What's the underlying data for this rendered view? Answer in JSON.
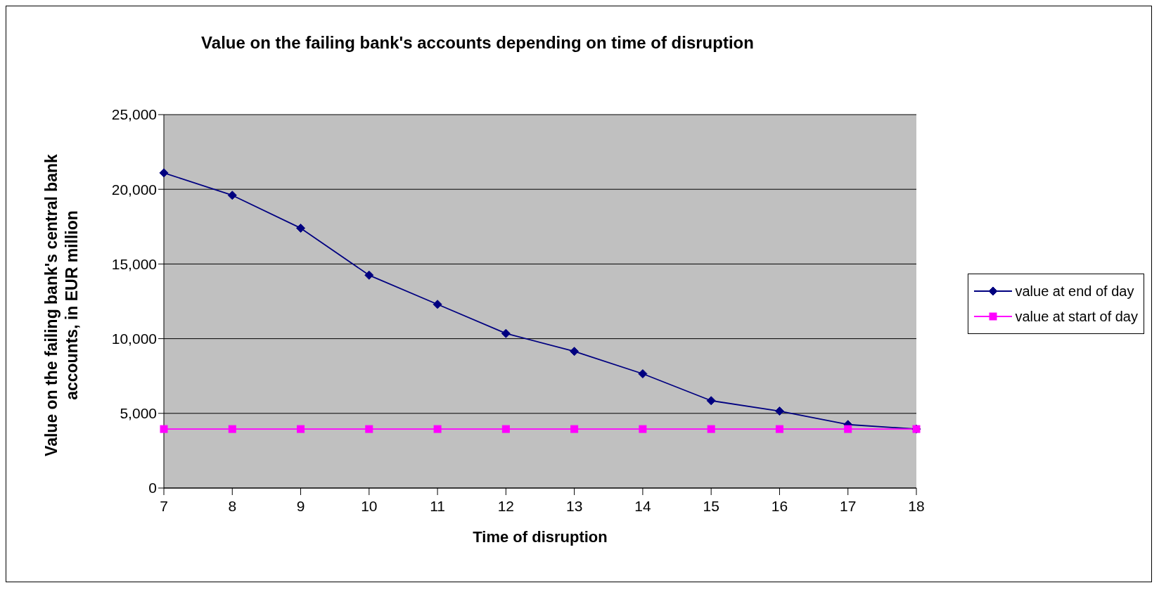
{
  "chart_data": {
    "type": "line",
    "title": "Value on the failing bank's accounts depending on time of disruption",
    "xlabel": "Time of disruption",
    "ylabel": "Value on the failing bank's central bank accounts, in EUR million",
    "categories": [
      "7",
      "8",
      "9",
      "10",
      "11",
      "12",
      "13",
      "14",
      "15",
      "16",
      "17",
      "18"
    ],
    "series": [
      {
        "name": "value at end of day",
        "color": "#000080",
        "marker": "diamond",
        "values": [
          21100,
          19600,
          17400,
          14250,
          12300,
          10350,
          9150,
          7650,
          5850,
          5150,
          4250,
          3950
        ]
      },
      {
        "name": "value at start of day",
        "color": "#ff00ff",
        "marker": "square",
        "values": [
          3950,
          3950,
          3950,
          3950,
          3950,
          3950,
          3950,
          3950,
          3950,
          3950,
          3950,
          3950
        ]
      }
    ],
    "ylim": [
      0,
      25000
    ],
    "yticks": [
      0,
      {
        "value": 5000,
        "label": "5,000"
      },
      {
        "value": 10000,
        "label": "10,000"
      },
      {
        "value": 15000,
        "label": "15,000"
      },
      {
        "value": 20000,
        "label": "20,000"
      },
      {
        "value": 25000,
        "label": "25,000"
      }
    ],
    "grid": "y",
    "legend": "right",
    "line_style": "solid"
  }
}
